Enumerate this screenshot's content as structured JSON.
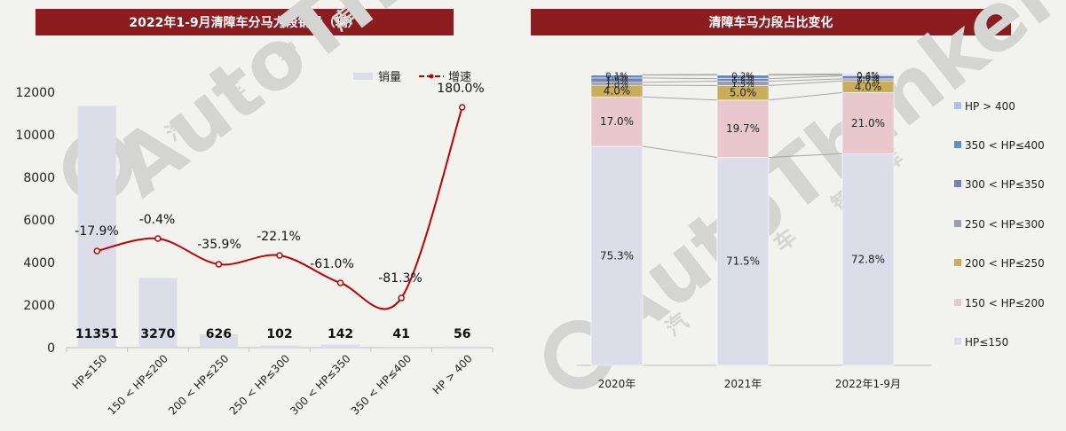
{
  "left_panel": {
    "title": "2022年1-9月清障车分马力段销量（辆）"
  },
  "right_panel": {
    "title": "清障车马力段占比变化"
  },
  "watermark": {
    "text": "AutoThinker",
    "cn": [
      "汽",
      "车",
      "智",
      "库"
    ]
  },
  "colors": {
    "title_bg": "#8b1c1f",
    "bar": "#dcdde8",
    "line": "#c00000",
    "hp150": "#dcdde8",
    "hp200": "#e8c8cc",
    "hp250": "#c9ae5a",
    "hp300": "#9b9cae",
    "hp350": "#7483b4",
    "hp400": "#5b8fd0",
    "hpgt400": "#a9c4e8"
  },
  "chart_data": [
    {
      "type": "bar",
      "title": "2022年1-9月清障车分马力段销量（辆）",
      "categories": [
        "HP≤150",
        "150 < HP≤200",
        "200 < HP≤250",
        "250 < HP≤300",
        "300 < HP≤350",
        "350 < HP≤400",
        "HP > 400"
      ],
      "series": [
        {
          "name": "销量",
          "type": "bar",
          "values": [
            11351,
            3270,
            626,
            102,
            142,
            41,
            56
          ],
          "labels": [
            "11351",
            "3270",
            "626",
            "102",
            "142",
            "41",
            "56"
          ]
        },
        {
          "name": "增速",
          "type": "line",
          "values": [
            -17.9,
            -0.4,
            -35.9,
            -22.1,
            -61.0,
            -81.3,
            180.0
          ],
          "labels": [
            "-17.9%",
            "-0.4%",
            "-35.9%",
            "-22.1%",
            "-61.0%",
            "-81.3%",
            "180.0%"
          ]
        }
      ],
      "ylim": [
        0,
        12000
      ],
      "yticks": [
        0,
        2000,
        4000,
        6000,
        8000,
        10000,
        12000
      ],
      "legend_position": "top-right",
      "grid": false
    },
    {
      "type": "bar",
      "stacked": true,
      "title": "清障车马力段占比变化",
      "categories": [
        "2020年",
        "2021年",
        "2022年1-9月"
      ],
      "series": [
        {
          "name": "HP≤150",
          "values": [
            75.3,
            71.5,
            72.8
          ],
          "labels": [
            "75.3%",
            "71.5%",
            "72.8%"
          ]
        },
        {
          "name": "150 < HP≤200",
          "values": [
            17.0,
            19.7,
            21.0
          ],
          "labels": [
            "17.0%",
            "19.7%",
            "21.0%"
          ]
        },
        {
          "name": "200 < HP≤250",
          "values": [
            4.0,
            5.0,
            4.0
          ],
          "labels": [
            "4.0%",
            "5.0%",
            "4.0%"
          ]
        },
        {
          "name": "250 < HP≤300",
          "values": [
            1.0,
            1.5,
            0.7
          ],
          "labels": [
            "1.0%",
            "1.5%",
            "0.7%"
          ]
        },
        {
          "name": "300 < HP≤350",
          "values": [
            1.5,
            0.9,
            1.0
          ],
          "labels": [
            "1.5%",
            "0.9%",
            "1.0%"
          ]
        },
        {
          "name": "350 < HP≤400",
          "values": [
            1.0,
            1.2,
            0.3
          ],
          "labels": [
            "1.0%",
            "1.2%",
            "0.3%"
          ]
        },
        {
          "name": "HP > 400",
          "values": [
            0.1,
            0.2,
            0.4
          ],
          "labels": [
            "0.1%",
            "0.2%",
            "0.4%"
          ]
        }
      ],
      "ylim": [
        0,
        100
      ],
      "legend_position": "right",
      "grid": false
    }
  ]
}
